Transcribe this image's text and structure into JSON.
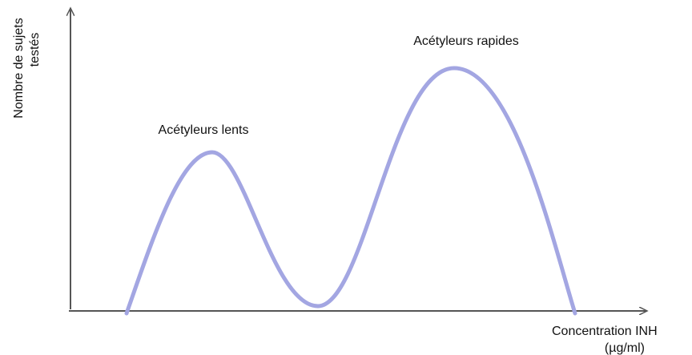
{
  "axes": {
    "y_label": [
      "Nombre de sujets",
      "testés"
    ],
    "x_label": [
      "Concentration INH",
      "(µg/ml)"
    ]
  },
  "annotations": [
    "Acétyleurs lents",
    "Acétyleurs rapides"
  ]
}
